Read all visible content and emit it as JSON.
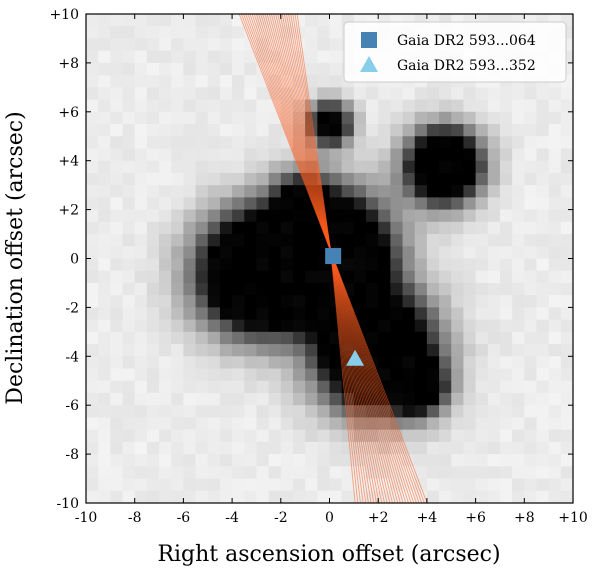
{
  "chart_data": {
    "type": "scatter",
    "xlabel": "Right ascension offset (arcsec)",
    "ylabel": "Declination offset (arcsec)",
    "xlim": [
      -10,
      10
    ],
    "ylim": [
      -10,
      10
    ],
    "xticks": [
      -10,
      -8,
      -6,
      -4,
      -2,
      0,
      2,
      4,
      6,
      8,
      10
    ],
    "yticks": [
      -10,
      -8,
      -6,
      -4,
      -2,
      0,
      2,
      4,
      6,
      8,
      10
    ],
    "xtick_labels": [
      "-10",
      "-8",
      "-6",
      "-4",
      "-2",
      "0",
      "+2",
      "+4",
      "+6",
      "+8",
      "+10"
    ],
    "ytick_labels": [
      "-10",
      "-8",
      "-6",
      "-4",
      "-2",
      "0",
      "+2",
      "+4",
      "+6",
      "+8",
      "+10"
    ],
    "background": "grayscale image cutout",
    "sources": [
      {
        "x": -3.0,
        "y": -0.6,
        "r": 1.6,
        "peak": 1.0
      },
      {
        "x": 0.1,
        "y": 0.3,
        "r": 1.6,
        "peak": 1.0
      },
      {
        "x": 1.9,
        "y": -3.8,
        "r": 1.6,
        "peak": 1.0
      },
      {
        "x": 4.7,
        "y": 3.8,
        "r": 1.0,
        "peak": 1.0
      },
      {
        "x": 0.0,
        "y": 5.5,
        "r": 0.6,
        "peak": 0.7
      },
      {
        "x": 3.7,
        "y": -5.3,
        "r": 0.7,
        "peak": 0.65
      },
      {
        "x": -1.2,
        "y": 2.5,
        "r": 0.8,
        "peak": 0.3
      }
    ],
    "rays": {
      "color": "#ff5c1f",
      "pivot": [
        0.05,
        0.3
      ],
      "top_x_range": [
        -3.9,
        -1.4
      ],
      "bottom_x_range": [
        1.1,
        4.2
      ],
      "count": 28
    },
    "series": [
      {
        "name": "Gaia DR2 593...064",
        "marker": "square",
        "color": "#4682b4",
        "x": 0.15,
        "y": 0.1
      },
      {
        "name": "Gaia DR2 593...352",
        "marker": "triangle",
        "color": "#87ceeb",
        "x": 1.05,
        "y": -4.1
      }
    ],
    "legend": "top-right",
    "grid": false
  }
}
